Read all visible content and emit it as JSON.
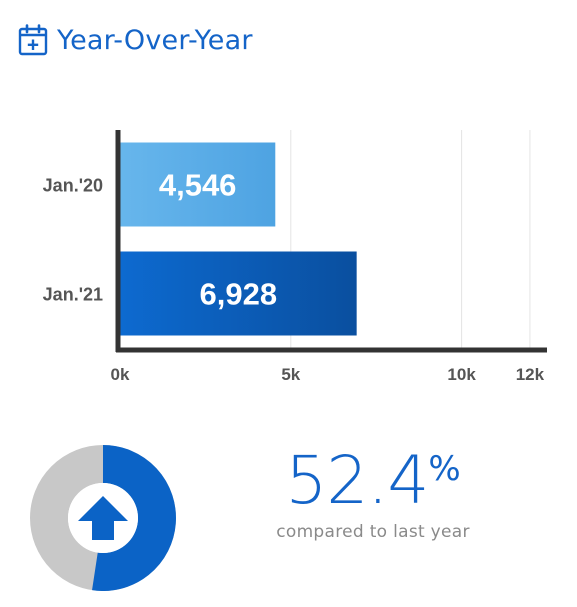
{
  "header": {
    "title": "Year-Over-Year",
    "icon": "calendar-plus-icon"
  },
  "chart_data": {
    "type": "bar",
    "orientation": "horizontal",
    "categories": [
      "Jan.'20",
      "Jan.'21"
    ],
    "values": [
      4546,
      6928
    ],
    "value_labels": [
      "4,546",
      "6,928"
    ],
    "bar_colors": [
      "#5aafe8",
      "#0b5fbf"
    ],
    "xlim": [
      0,
      12500
    ],
    "xticks": [
      0,
      5000,
      10000,
      12000
    ],
    "xtick_labels": [
      "0k",
      "5k",
      "10k",
      "12k"
    ],
    "grid": true
  },
  "summary": {
    "percent_value": "52.4",
    "percent_symbol": "%",
    "percent_fraction": 0.524,
    "caption": "compared to last year",
    "arrow_icon": "arrow-up-icon",
    "accent_color": "#0b63c6",
    "track_color": "#c8c8c8"
  }
}
